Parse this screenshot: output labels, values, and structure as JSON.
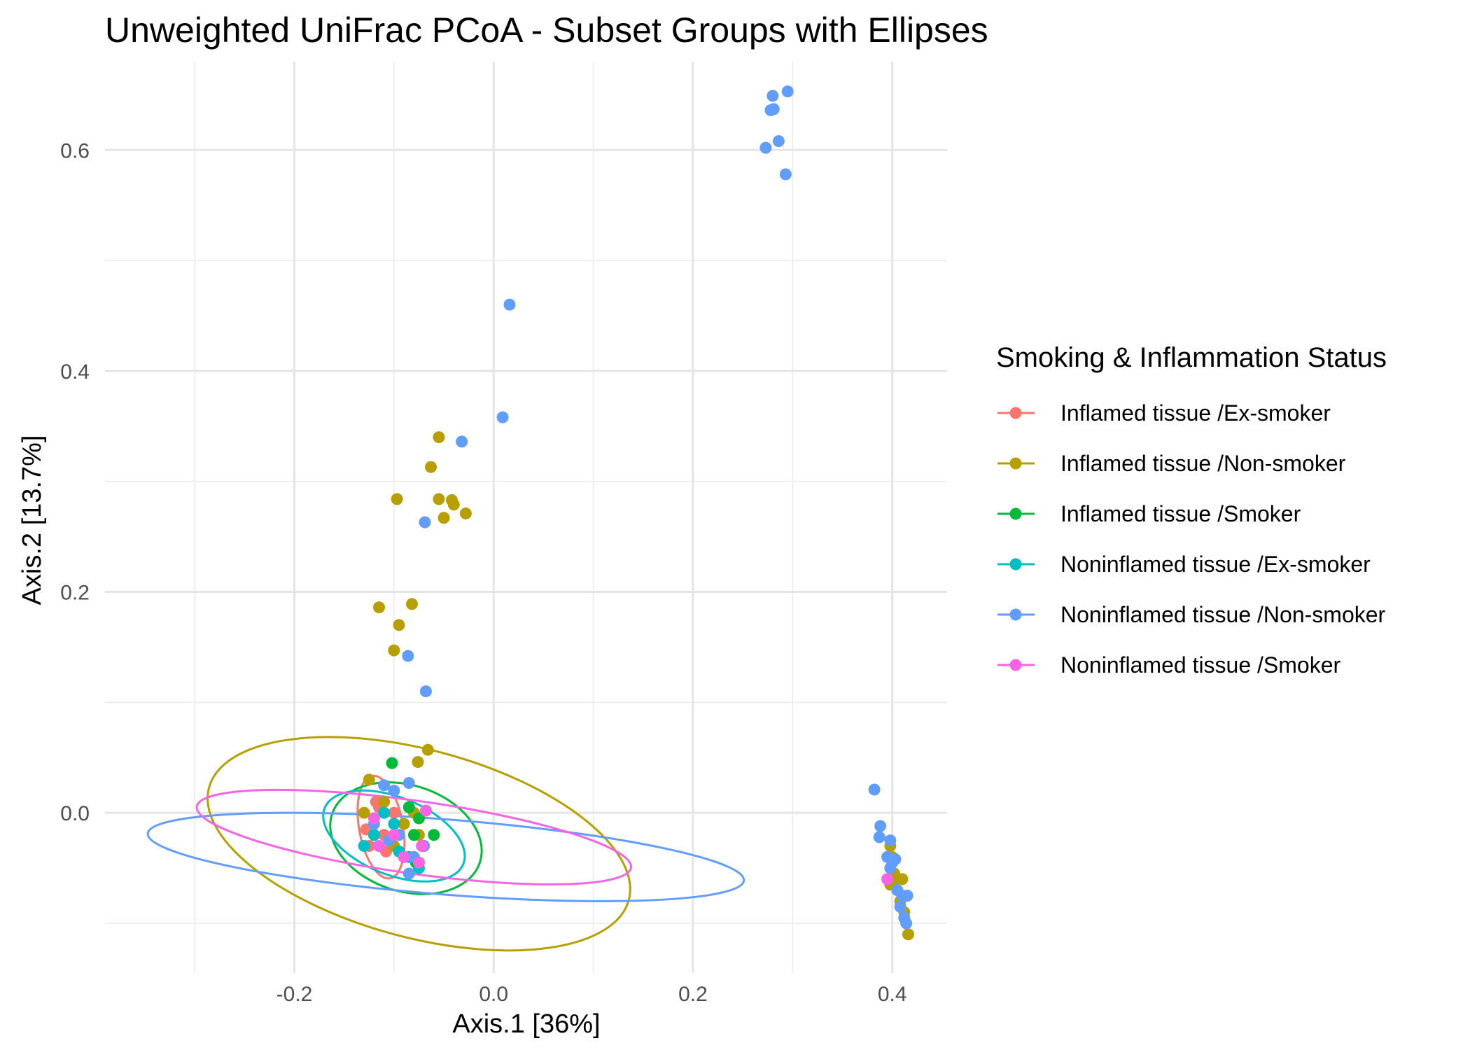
{
  "chart_data": {
    "type": "scatter",
    "title": "Unweighted UniFrac PCoA - Subset Groups with Ellipses",
    "xlabel": "Axis.1   [36%]",
    "ylabel": "Axis.2   [13.7%]",
    "xlim": [
      -0.39,
      0.455
    ],
    "ylim": [
      -0.145,
      0.68
    ],
    "xticks": [
      -0.2,
      0.0,
      0.2,
      0.4
    ],
    "xtick_labels": [
      "-0.2",
      "0.0",
      "0.2",
      "0.4"
    ],
    "yticks": [
      0.0,
      0.2,
      0.4,
      0.6
    ],
    "ytick_labels": [
      "0.0",
      "0.2",
      "0.4",
      "0.6"
    ],
    "grid": true,
    "legend_title": "Smoking & Inflammation Status",
    "legend_position": "right",
    "series": [
      {
        "name": "Inflamed tissue /Ex-smoker",
        "color": "#F8766D",
        "points": [
          [
            -0.12,
            -0.01
          ],
          [
            -0.115,
            0.005
          ],
          [
            -0.11,
            -0.02
          ],
          [
            -0.125,
            -0.03
          ],
          [
            -0.1,
            0.0
          ],
          [
            -0.108,
            -0.035
          ],
          [
            -0.118,
            0.01
          ],
          [
            -0.128,
            -0.015
          ]
        ],
        "ellipse": {
          "cx": -0.113,
          "cy": -0.013,
          "rx": 0.022,
          "ry": 0.047,
          "angle": -10
        }
      },
      {
        "name": "Inflamed tissue /Non-smoker",
        "color": "#B79F00",
        "points": [
          [
            -0.055,
            0.34
          ],
          [
            -0.063,
            0.313
          ],
          [
            -0.055,
            0.284
          ],
          [
            -0.042,
            0.283
          ],
          [
            -0.04,
            0.279
          ],
          [
            -0.097,
            0.284
          ],
          [
            -0.028,
            0.271
          ],
          [
            -0.05,
            0.267
          ],
          [
            -0.082,
            0.189
          ],
          [
            -0.115,
            0.186
          ],
          [
            -0.095,
            0.17
          ],
          [
            -0.1,
            0.147
          ],
          [
            -0.066,
            0.057
          ],
          [
            -0.076,
            0.046
          ],
          [
            -0.125,
            0.03
          ],
          [
            -0.13,
            0.0
          ],
          [
            -0.12,
            -0.02
          ],
          [
            -0.11,
            0.01
          ],
          [
            -0.1,
            -0.03
          ],
          [
            -0.09,
            -0.01
          ],
          [
            -0.08,
            0.0
          ],
          [
            -0.075,
            -0.02
          ],
          [
            0.398,
            -0.03
          ],
          [
            0.4,
            -0.04
          ],
          [
            0.405,
            -0.06
          ],
          [
            0.41,
            -0.06
          ],
          [
            0.402,
            -0.055
          ],
          [
            0.398,
            -0.065
          ],
          [
            0.408,
            -0.08
          ],
          [
            0.412,
            -0.09
          ],
          [
            0.416,
            -0.11
          ]
        ],
        "ellipse": {
          "cx": -0.075,
          "cy": -0.028,
          "rx": 0.218,
          "ry": 0.085,
          "angle": 15
        }
      },
      {
        "name": "Inflamed tissue /Smoker",
        "color": "#00BA38",
        "points": [
          [
            -0.102,
            0.045
          ],
          [
            -0.075,
            -0.005
          ],
          [
            -0.08,
            -0.02
          ],
          [
            -0.07,
            -0.03
          ],
          [
            -0.09,
            -0.04
          ],
          [
            -0.078,
            -0.045
          ],
          [
            -0.06,
            -0.02
          ],
          [
            -0.085,
            0.005
          ]
        ],
        "ellipse": {
          "cx": -0.088,
          "cy": -0.023,
          "rx": 0.078,
          "ry": 0.048,
          "angle": 18
        }
      },
      {
        "name": "Noninflamed tissue /Ex-smoker",
        "color": "#00BFC4",
        "points": [
          [
            -0.13,
            -0.03
          ],
          [
            -0.12,
            -0.02
          ],
          [
            -0.1,
            -0.01
          ],
          [
            -0.085,
            -0.04
          ],
          [
            -0.075,
            -0.05
          ],
          [
            -0.07,
            -0.03
          ],
          [
            -0.095,
            -0.035
          ],
          [
            -0.11,
            0.0
          ]
        ],
        "ellipse": {
          "cx": -0.1,
          "cy": -0.021,
          "rx": 0.075,
          "ry": 0.035,
          "angle": 22
        }
      },
      {
        "name": "Noninflamed tissue /Non-smoker",
        "color": "#619CFF",
        "points": [
          [
            0.295,
            0.653
          ],
          [
            0.28,
            0.649
          ],
          [
            0.281,
            0.637
          ],
          [
            0.278,
            0.636
          ],
          [
            0.286,
            0.608
          ],
          [
            0.273,
            0.602
          ],
          [
            0.293,
            0.578
          ],
          [
            0.016,
            0.46
          ],
          [
            0.009,
            0.358
          ],
          [
            -0.032,
            0.336
          ],
          [
            -0.069,
            0.263
          ],
          [
            -0.086,
            0.142
          ],
          [
            -0.068,
            0.11
          ],
          [
            -0.085,
            0.027
          ],
          [
            -0.11,
            0.025
          ],
          [
            -0.1,
            0.02
          ],
          [
            -0.12,
            -0.01
          ],
          [
            -0.095,
            -0.02
          ],
          [
            -0.08,
            -0.04
          ],
          [
            -0.085,
            -0.055
          ],
          [
            -0.07,
            -0.03
          ],
          [
            -0.105,
            -0.025
          ],
          [
            0.382,
            0.021
          ],
          [
            0.388,
            -0.012
          ],
          [
            0.387,
            -0.022
          ],
          [
            0.398,
            -0.025
          ],
          [
            0.395,
            -0.04
          ],
          [
            0.4,
            -0.045
          ],
          [
            0.403,
            -0.042
          ],
          [
            0.398,
            -0.05
          ],
          [
            0.405,
            -0.07
          ],
          [
            0.41,
            -0.075
          ],
          [
            0.415,
            -0.075
          ],
          [
            0.408,
            -0.085
          ],
          [
            0.412,
            -0.095
          ],
          [
            0.414,
            -0.1
          ]
        ],
        "ellipse": {
          "cx": -0.048,
          "cy": -0.04,
          "rx": 0.3,
          "ry": 0.034,
          "angle": 4.5
        }
      },
      {
        "name": "Noninflamed tissue /Smoker",
        "color": "#F564E3",
        "points": [
          [
            -0.12,
            -0.005
          ],
          [
            -0.1,
            -0.02
          ],
          [
            -0.09,
            -0.04
          ],
          [
            -0.075,
            -0.045
          ],
          [
            -0.068,
            0.002
          ],
          [
            -0.072,
            -0.03
          ],
          [
            -0.115,
            -0.03
          ],
          [
            0.395,
            -0.06
          ]
        ],
        "ellipse": {
          "cx": -0.08,
          "cy": -0.022,
          "rx": 0.22,
          "ry": 0.033,
          "angle": 8
        }
      }
    ]
  }
}
